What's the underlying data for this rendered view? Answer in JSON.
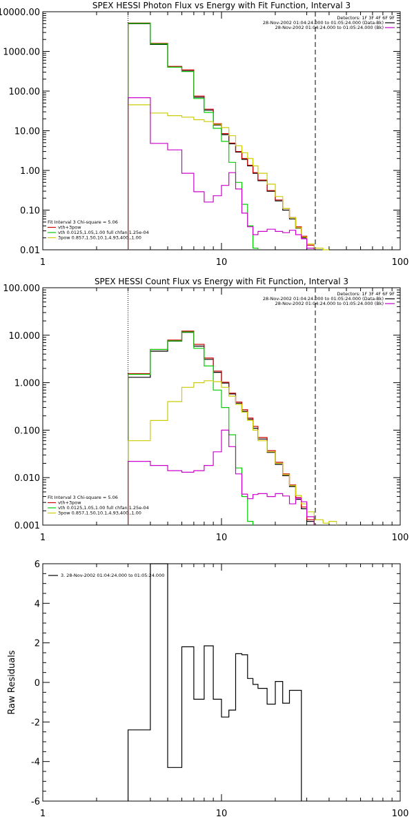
{
  "chart_data": [
    {
      "type": "line",
      "title": "SPEX HESSI Photon Flux vs Energy with Fit Function, Interval 3",
      "xscale": "log",
      "yscale": "log",
      "xlim": [
        1,
        100
      ],
      "ylim": [
        0.01,
        10000
      ],
      "xticks": [
        {
          "v": 1,
          "label": "1"
        },
        {
          "v": 10,
          "label": "10"
        },
        {
          "v": 100,
          "label": "100"
        }
      ],
      "yticks": [
        {
          "v": 10000,
          "label": "10000.00"
        },
        {
          "v": 1000,
          "label": "1000.00"
        },
        {
          "v": 100,
          "label": "100.00"
        },
        {
          "v": 10,
          "label": "10.00"
        },
        {
          "v": 1,
          "label": "1.00"
        },
        {
          "v": 0.1,
          "label": "0.10"
        },
        {
          "v": 0.01,
          "label": "0.01"
        }
      ],
      "vlines": [
        {
          "x": 3,
          "style": "dotted"
        },
        {
          "x": 33.5,
          "style": "dashed"
        }
      ],
      "detectors_label": "Detectors: 1F 3F 4F 6F 9F",
      "top_legend": [
        {
          "label": "28-Nov-2002 01:04:24.000 to 01:05:24.000 (Data-Bk)",
          "color": "#000000"
        },
        {
          "label": "28-Nov-2002 01:04:24.000 to 01:05:24.000 (Bk)",
          "color": "#cc00cc"
        }
      ],
      "fit_header": "Fit Interval 3   Chi-square = 5.06",
      "fit_legend": [
        {
          "label": "vth+3pow",
          "color": "#cc0000"
        },
        {
          "label": "vth 0.0125,1.05,1.00  full chfan 1.25e-04",
          "color": "#00cc00"
        },
        {
          "label": "3pow 0.857,1.50,10.1,4.93,400.,1.00",
          "color": "#cccc00"
        }
      ],
      "bin_edges": [
        3,
        4,
        5,
        6,
        7,
        8,
        9,
        10,
        11,
        12,
        13,
        14,
        15,
        16,
        18,
        20,
        22,
        24,
        26,
        28,
        30,
        33,
        37,
        40
      ],
      "series": [
        {
          "color": "#000000",
          "values": [
            5000,
            1500,
            400,
            320,
            70,
            33,
            14,
            8,
            4.7,
            2.9,
            1.9,
            1.3,
            0.85,
            0.55,
            0.3,
            0.17,
            0.1,
            0.06,
            0.035,
            0.02,
            null,
            null,
            null
          ]
        },
        {
          "color": "#cc0000",
          "values": [
            5200,
            1600,
            420,
            340,
            75,
            35,
            15,
            8.5,
            4.9,
            3.0,
            2.0,
            1.35,
            0.88,
            0.57,
            0.31,
            0.18,
            0.11,
            0.065,
            0.038,
            0.022,
            0.013,
            null,
            null
          ]
        },
        {
          "color": "#00cc00",
          "values": [
            5100,
            1550,
            400,
            310,
            65,
            29,
            11.5,
            5.4,
            1.6,
            0.5,
            0.14,
            0.04,
            0.011,
            null,
            null,
            null,
            null,
            null,
            null,
            null,
            null,
            null,
            null
          ]
        },
        {
          "color": "#cccc00",
          "values": [
            45,
            28,
            24,
            22,
            19,
            17,
            14.5,
            12,
            7.5,
            4.2,
            2.8,
            2.0,
            1.3,
            0.85,
            0.45,
            0.22,
            0.11,
            0.064,
            0.036,
            0.021,
            0.014,
            0.011,
            0.01
          ]
        },
        {
          "color": "#cc00cc",
          "values": [
            68,
            4.8,
            3.3,
            0.85,
            0.29,
            0.16,
            0.23,
            0.42,
            0.88,
            0.34,
            0.084,
            0.038,
            0.024,
            0.029,
            0.033,
            0.029,
            0.027,
            0.031,
            0.024,
            0.019,
            0.011,
            null,
            null
          ]
        }
      ]
    },
    {
      "type": "line",
      "title": "SPEX HESSI Count Flux vs Energy with Fit Function, Interval 3",
      "xscale": "log",
      "yscale": "log",
      "xlim": [
        1,
        100
      ],
      "ylim": [
        0.001,
        100
      ],
      "xticks": [
        {
          "v": 1,
          "label": "1"
        },
        {
          "v": 10,
          "label": "10"
        },
        {
          "v": 100,
          "label": "100"
        }
      ],
      "yticks": [
        {
          "v": 100,
          "label": "100.000"
        },
        {
          "v": 10,
          "label": "10.000"
        },
        {
          "v": 1,
          "label": "1.000"
        },
        {
          "v": 0.1,
          "label": "0.100"
        },
        {
          "v": 0.01,
          "label": "0.010"
        },
        {
          "v": 0.001,
          "label": "0.001"
        }
      ],
      "vlines": [
        {
          "x": 3,
          "style": "dotted"
        },
        {
          "x": 33.5,
          "style": "dashed"
        }
      ],
      "detectors_label": "Detectors: 1F 3F 4F 6F 9F",
      "top_legend": [
        {
          "label": "28-Nov-2002 01:04:24.000 to 01:05:24.000 (Data-Bk)",
          "color": "#000000"
        },
        {
          "label": "28-Nov-2002 01:04:24.000 to 01:05:24.000 (Bk)",
          "color": "#cc00cc"
        }
      ],
      "fit_header": "Fit Interval 3   Chi-square = 5.06",
      "fit_legend": [
        {
          "label": "vth+3pow",
          "color": "#cc0000"
        },
        {
          "label": "vth 0.0125,1.05,1.00  full chfan 1.25e-04",
          "color": "#00cc00"
        },
        {
          "label": "3pow 0.857,1.50,10.1,4.93,400.,1.00",
          "color": "#cccc00"
        }
      ],
      "bin_edges": [
        3,
        4,
        5,
        6,
        7,
        8,
        9,
        10,
        11,
        12,
        13,
        14,
        15,
        16,
        18,
        20,
        22,
        24,
        26,
        28,
        30,
        33,
        37,
        40,
        44
      ],
      "series": [
        {
          "color": "#000000",
          "values": [
            1.3,
            4.6,
            7.5,
            11.5,
            5.9,
            3.1,
            1.65,
            0.98,
            0.58,
            0.37,
            0.25,
            0.17,
            0.11,
            0.065,
            0.034,
            0.019,
            0.011,
            0.0065,
            0.0035,
            0.0022,
            0.0012,
            null,
            null,
            null
          ]
        },
        {
          "color": "#cc0000",
          "values": [
            1.55,
            5.0,
            7.9,
            12.2,
            6.4,
            3.3,
            1.75,
            1.02,
            0.6,
            0.39,
            0.27,
            0.18,
            0.12,
            0.07,
            0.037,
            0.021,
            0.012,
            0.007,
            0.0038,
            0.0024,
            0.0013,
            null,
            null,
            null
          ]
        },
        {
          "color": "#00cc00",
          "values": [
            1.5,
            5.0,
            7.6,
            11.7,
            5.3,
            2.25,
            0.7,
            0.3,
            0.08,
            0.016,
            0.004,
            0.0012,
            null,
            null,
            null,
            null,
            null,
            null,
            null,
            null,
            null,
            null,
            null,
            null
          ]
        },
        {
          "color": "#cccc00",
          "values": [
            0.06,
            0.16,
            0.4,
            0.8,
            1.0,
            1.1,
            1.05,
            0.8,
            0.52,
            0.35,
            0.24,
            0.16,
            0.1,
            0.06,
            0.035,
            0.02,
            0.0115,
            0.0068,
            0.0042,
            0.0028,
            0.0019,
            0.0013,
            0.0011,
            0.0012
          ]
        },
        {
          "color": "#cc00cc",
          "values": [
            0.022,
            0.018,
            0.014,
            0.013,
            0.014,
            0.018,
            0.035,
            0.1,
            0.045,
            0.012,
            0.0045,
            0.0036,
            0.0044,
            0.0046,
            0.004,
            0.0046,
            0.0041,
            0.0028,
            0.0037,
            0.0031,
            0.0015,
            null,
            null,
            null
          ]
        }
      ]
    },
    {
      "type": "line",
      "title": "",
      "xscale": "log",
      "yscale": "linear",
      "ylabel": "Raw Residuals",
      "xlim": [
        1,
        100
      ],
      "ylim": [
        -6,
        6
      ],
      "xticks": [
        {
          "v": 1,
          "label": "1"
        },
        {
          "v": 10,
          "label": "10"
        },
        {
          "v": 100,
          "label": "100"
        }
      ],
      "yticks": [
        {
          "v": 6,
          "label": "6"
        },
        {
          "v": 4,
          "label": "4"
        },
        {
          "v": 2,
          "label": "2"
        },
        {
          "v": 0,
          "label": "0"
        },
        {
          "v": -2,
          "label": "-2"
        },
        {
          "v": -4,
          "label": "-4"
        },
        {
          "v": -6,
          "label": "-6"
        }
      ],
      "top_legend": [
        {
          "label": "3. 28-Nov-2002 01:04:24.000 to 01:05:24.000",
          "color": "#000000"
        }
      ],
      "bin_edges": [
        3,
        4,
        5,
        6,
        7,
        8,
        9,
        10,
        11,
        12,
        13,
        14,
        15,
        16,
        18,
        20,
        22,
        24,
        26,
        28,
        30,
        33
      ],
      "series": [
        {
          "color": "#000000",
          "values": [
            -2.4,
            6.0,
            -4.3,
            1.8,
            -0.85,
            1.85,
            -0.85,
            -1.75,
            -1.4,
            1.45,
            1.4,
            0.2,
            -0.1,
            -0.3,
            -1.1,
            0.05,
            -1.05,
            -0.4,
            -0.4,
            null,
            null
          ]
        }
      ]
    }
  ]
}
